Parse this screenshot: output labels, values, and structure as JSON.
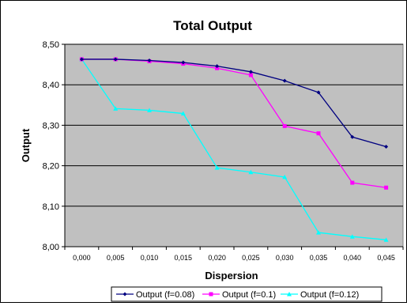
{
  "chart_data": {
    "type": "line",
    "title": "Total Output",
    "xlabel": "Dispersion",
    "ylabel": "Output",
    "categories": [
      "0,000",
      "0,005",
      "0,010",
      "0,015",
      "0,020",
      "0,025",
      "0,030",
      "0,035",
      "0,040",
      "0,045"
    ],
    "y_ticks": [
      "8,00",
      "8,10",
      "8,20",
      "8,30",
      "8,40",
      "8,50"
    ],
    "ylim": [
      8.0,
      8.5
    ],
    "grid": "horizontal",
    "legend_position": "bottom",
    "plot_background": "#c0c0c0",
    "series": [
      {
        "name": "Output (f=0.08)",
        "color": "#000080",
        "marker": "diamond",
        "values": [
          8.463,
          8.463,
          8.46,
          8.455,
          8.446,
          8.432,
          8.41,
          8.381,
          8.271,
          8.247
        ]
      },
      {
        "name": "Output (f=0.1)",
        "color": "#ff00ff",
        "marker": "square",
        "values": [
          8.463,
          8.463,
          8.458,
          8.452,
          8.441,
          8.424,
          8.298,
          8.28,
          8.158,
          8.146
        ]
      },
      {
        "name": "Output (f=0.12)",
        "color": "#00ffff",
        "marker": "triangle",
        "values": [
          8.463,
          8.341,
          8.337,
          8.329,
          8.195,
          8.184,
          8.172,
          8.035,
          8.025,
          8.017
        ]
      }
    ]
  }
}
